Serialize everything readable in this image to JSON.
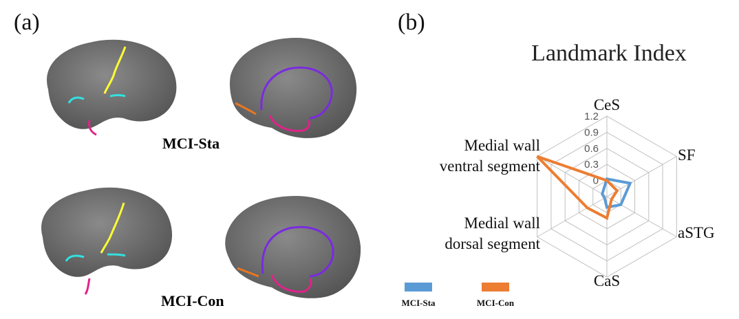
{
  "panels": {
    "a_label": "(a)",
    "b_label": "(b)"
  },
  "brains": {
    "top_caption": "MCI-Sta",
    "bottom_caption": "MCI-Con",
    "line_colors": {
      "CeS": "#ffff33",
      "SF": "#33e0e0",
      "aSTG": "#e0228a",
      "CaS": "#e87722",
      "medial": "#7a2be0"
    }
  },
  "colors": {
    "sta": "#5b9bd5",
    "con": "#ed7d31",
    "grid": "#bfbfbf",
    "brain": "#6e6e6e"
  },
  "chart_data": {
    "type": "radar",
    "title": "Landmark Index",
    "categories": [
      "CeS",
      "SF",
      "aSTG",
      "CaS",
      "Medial wall dorsal segment",
      "Medial wall ventral segment"
    ],
    "category_lines": [
      [
        "CeS"
      ],
      [
        "SF"
      ],
      [
        "aSTG"
      ],
      [
        "CaS"
      ],
      [
        "Medial wall",
        "dorsal segment"
      ],
      [
        "Medial wall",
        "ventral segment"
      ]
    ],
    "ticks": [
      "0",
      "0.3",
      "0.6",
      "0.9",
      "1.2"
    ],
    "range": [
      -0.3,
      1.2
    ],
    "series": [
      {
        "name": "MCI-Sta",
        "values": [
          0.03,
          0.2,
          0.0,
          -0.1,
          -0.25,
          -0.2
        ]
      },
      {
        "name": "MCI-Con",
        "values": [
          0.0,
          -0.08,
          -0.2,
          0.1,
          0.12,
          1.2
        ]
      }
    ],
    "legend_position": "bottom"
  }
}
